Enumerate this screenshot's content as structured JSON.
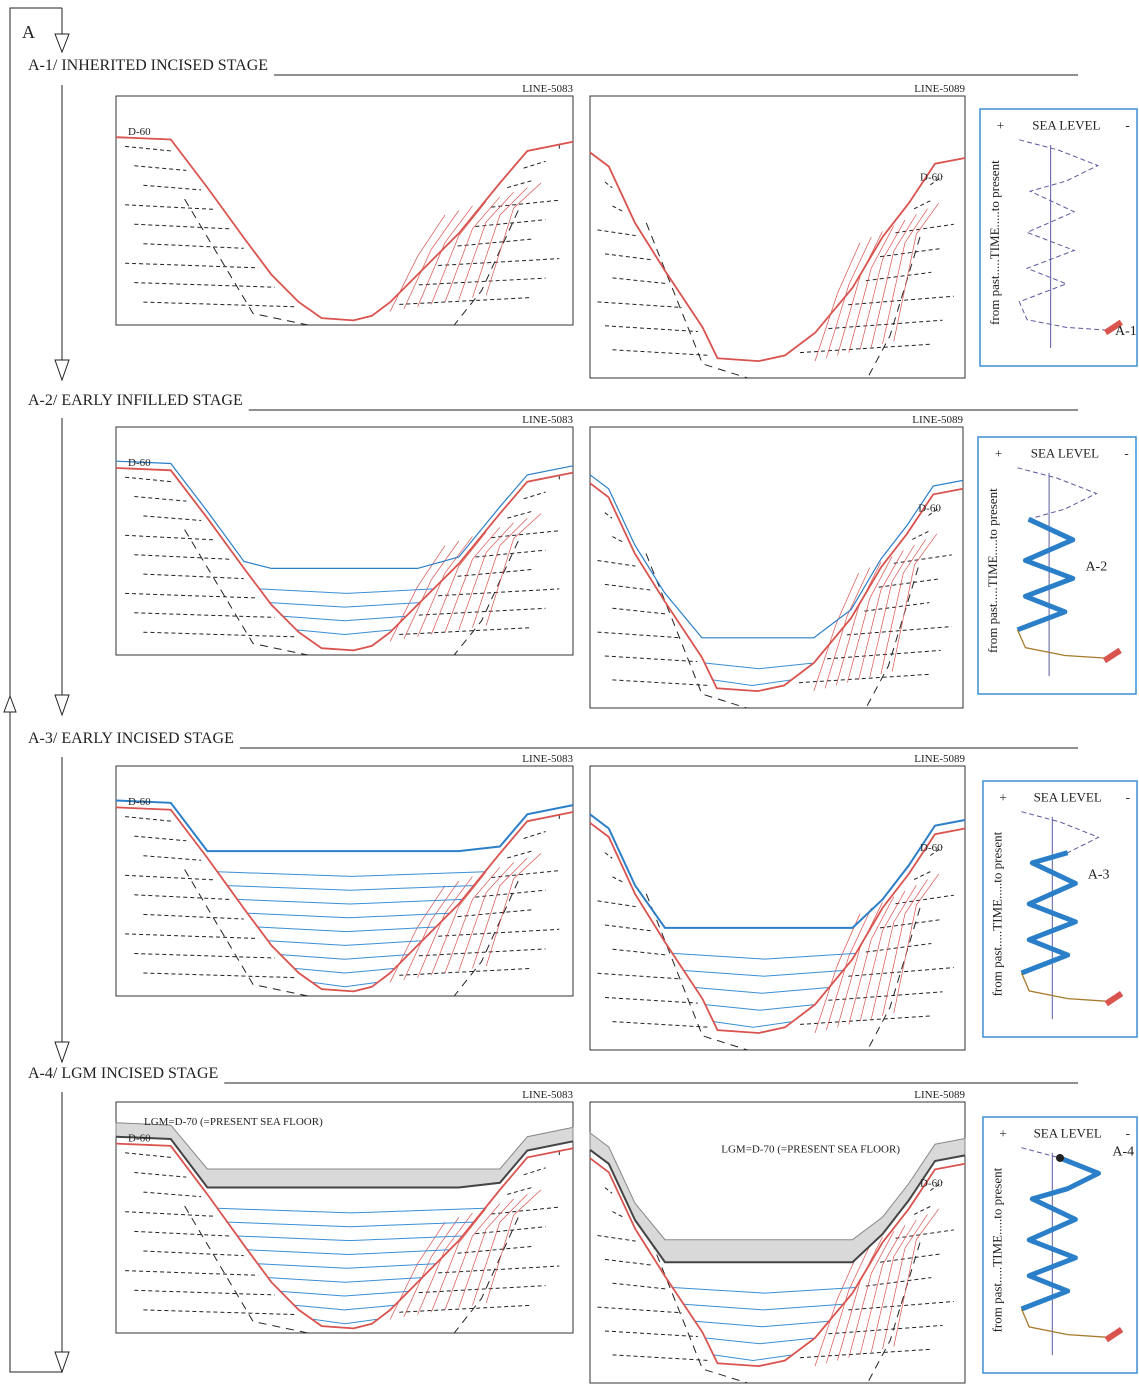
{
  "figure_label": "A",
  "stages": [
    {
      "title": "A-1/ INHERITED INCISED STAGE",
      "panels": [
        {
          "line": "LINE-5083",
          "horizon": "D-60"
        },
        {
          "line": "LINE-5089",
          "horizon": "D-60"
        }
      ],
      "curve": {
        "plus": "+",
        "title": "SEA LEVEL",
        "minus": "-",
        "axis": "from past.....TIME.....to present",
        "label": "A-1"
      }
    },
    {
      "title": "A-2/ EARLY INFILLED STAGE",
      "panels": [
        {
          "line": "LINE-5083",
          "horizon": "D-60"
        },
        {
          "line": "LINE-5089",
          "horizon": "D-60"
        }
      ],
      "curve": {
        "plus": "+",
        "title": "SEA LEVEL",
        "minus": "-",
        "axis": "from past.....TIME.....to present",
        "label": "A-2"
      }
    },
    {
      "title": "A-3/ EARLY INCISED STAGE",
      "panels": [
        {
          "line": "LINE-5083",
          "horizon": "D-60"
        },
        {
          "line": "LINE-5089",
          "horizon": "D-60"
        }
      ],
      "curve": {
        "plus": "+",
        "title": "SEA LEVEL",
        "minus": "-",
        "axis": "from past.....TIME.....to present",
        "label": "A-3"
      }
    },
    {
      "title": "A-4/ LGM INCISED STAGE",
      "panels": [
        {
          "line": "LINE-5083",
          "horizon": "D-60",
          "surface": "LGM=D-70 (=PRESENT SEA FLOOR)"
        },
        {
          "line": "LINE-5089",
          "horizon": "D-60",
          "surface": "LGM=D-70 (=PRESENT SEA FLOOR)"
        }
      ],
      "curve": {
        "plus": "+",
        "title": "SEA LEVEL",
        "minus": "-",
        "axis": "from past.....TIME.....to present",
        "label": "A-4"
      }
    }
  ]
}
